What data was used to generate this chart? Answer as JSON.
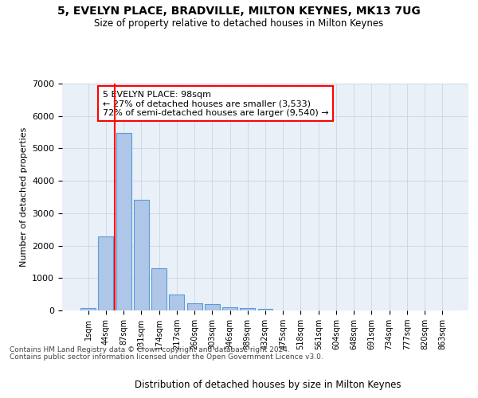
{
  "title1": "5, EVELYN PLACE, BRADVILLE, MILTON KEYNES, MK13 7UG",
  "title2": "Size of property relative to detached houses in Milton Keynes",
  "xlabel": "Distribution of detached houses by size in Milton Keynes",
  "ylabel": "Number of detached properties",
  "categories": [
    "1sqm",
    "44sqm",
    "87sqm",
    "131sqm",
    "174sqm",
    "217sqm",
    "260sqm",
    "303sqm",
    "346sqm",
    "389sqm",
    "432sqm",
    "475sqm",
    "518sqm",
    "561sqm",
    "604sqm",
    "648sqm",
    "691sqm",
    "734sqm",
    "777sqm",
    "820sqm",
    "863sqm"
  ],
  "bar_values": [
    75,
    2280,
    5480,
    3420,
    1300,
    500,
    210,
    185,
    100,
    75,
    55,
    0,
    0,
    0,
    0,
    0,
    0,
    0,
    0,
    0,
    0
  ],
  "bar_color": "#aec6e8",
  "bar_edge_color": "#5b9bd5",
  "vline_color": "red",
  "annotation_text": "5 EVELYN PLACE: 98sqm\n← 27% of detached houses are smaller (3,533)\n72% of semi-detached houses are larger (9,540) →",
  "ylim": [
    0,
    7000
  ],
  "yticks": [
    0,
    1000,
    2000,
    3000,
    4000,
    5000,
    6000,
    7000
  ],
  "grid_color": "#d0d8e8",
  "background_color": "#eaf0f8",
  "footnote1": "Contains HM Land Registry data © Crown copyright and database right 2024.",
  "footnote2": "Contains public sector information licensed under the Open Government Licence v3.0."
}
